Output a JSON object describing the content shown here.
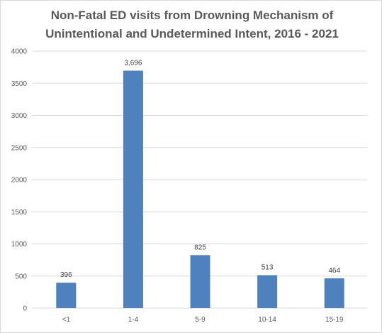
{
  "chart_data": {
    "type": "bar",
    "title_lines": [
      "Non-Fatal ED visits from Drowning Mechanism of",
      "Unintentional and Undetermined Intent,  2016 - 2021"
    ],
    "categories": [
      "<1",
      "1-4",
      "5-9",
      "10-14",
      "15-19"
    ],
    "values": [
      396,
      3696,
      825,
      513,
      464
    ],
    "data_labels": [
      "396",
      "3,696",
      "825",
      "513",
      "464"
    ],
    "xlabel": "",
    "ylabel": "",
    "ylim": [
      0,
      4000
    ],
    "y_ticks": [
      0,
      500,
      1000,
      1500,
      2000,
      2500,
      3000,
      3500,
      4000
    ],
    "grid": true,
    "bar_color": "#4f81bd",
    "gridline_color": "#d9d9d9"
  }
}
